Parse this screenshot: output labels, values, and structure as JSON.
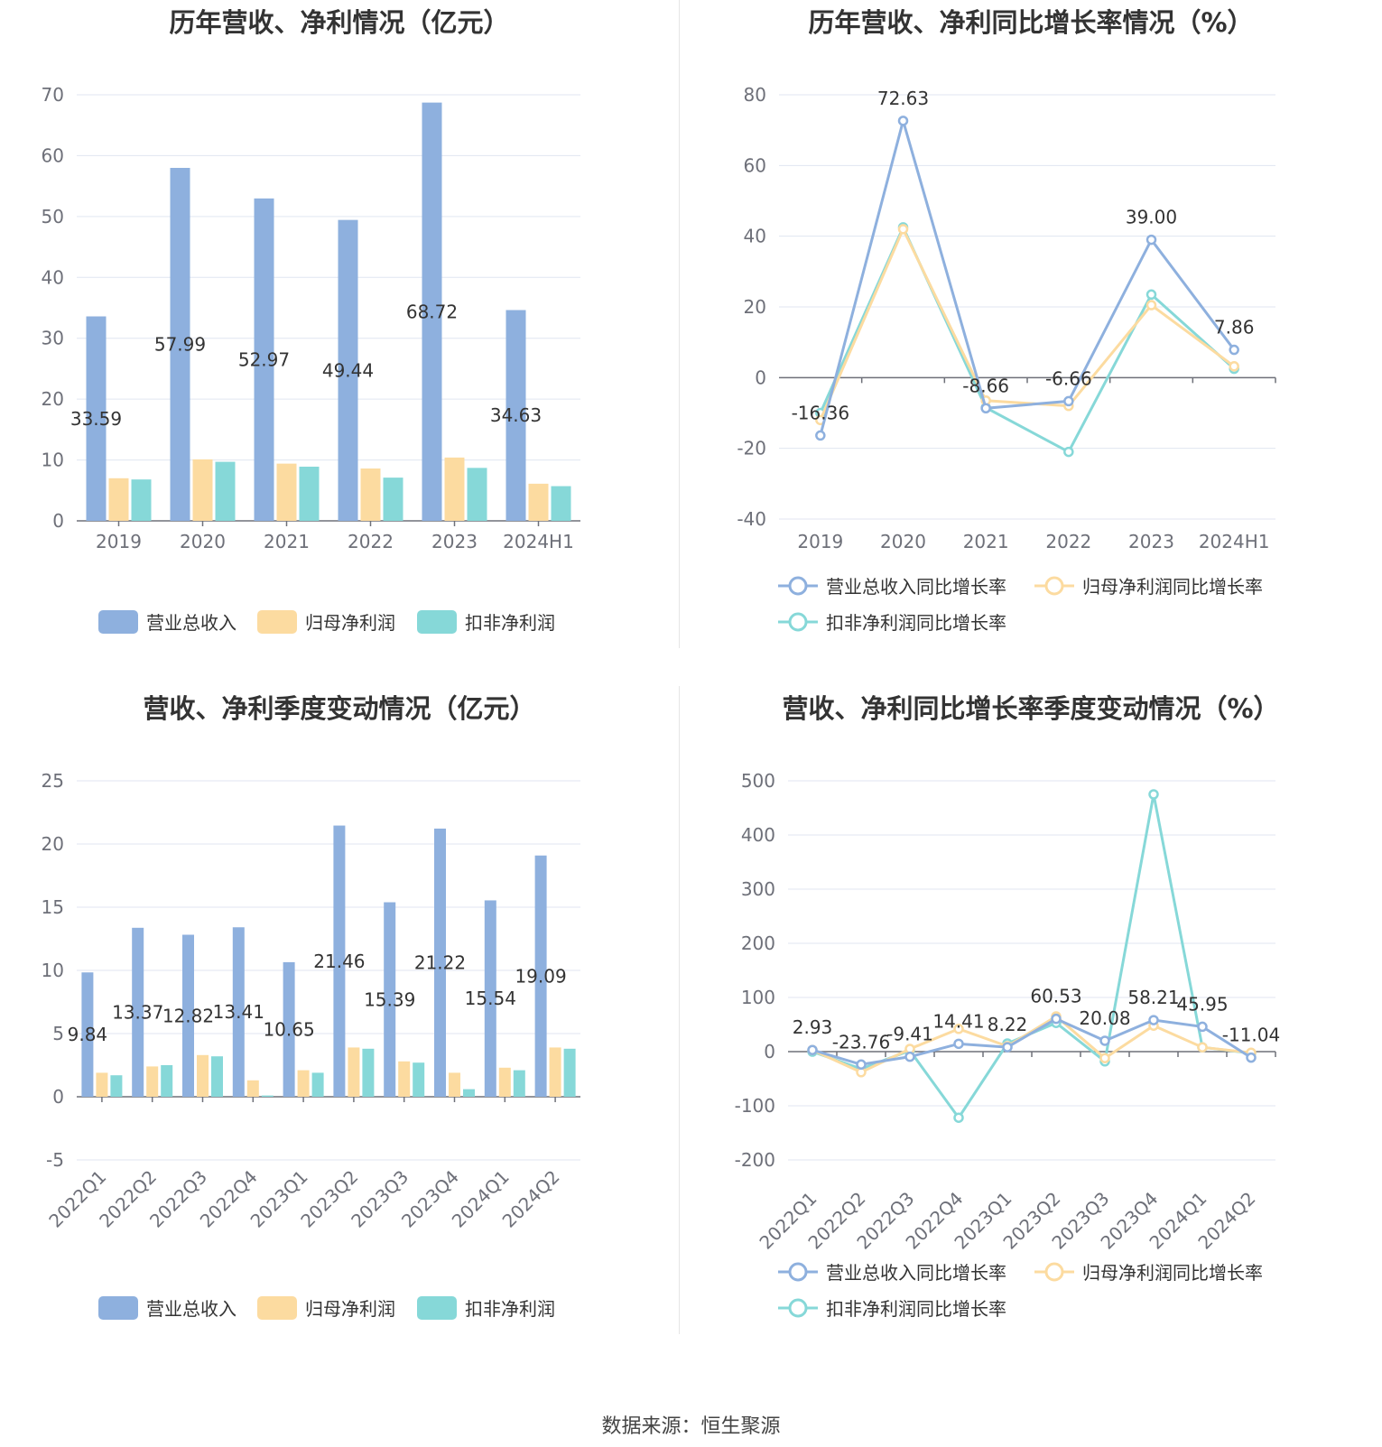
{
  "colors": {
    "revenue": "#8eb0de",
    "parent_profit": "#fcdba0",
    "nonrecurring_profit": "#86d8d8",
    "grid": "#e0e6f1",
    "axis": "#6e7079"
  },
  "source_label": "数据来源：",
  "source_name": "恒生聚源",
  "chart_data": [
    {
      "type": "bar",
      "title": "历年营收、净利情况（亿元）",
      "categories": [
        "2019",
        "2020",
        "2021",
        "2022",
        "2023",
        "2024H1"
      ],
      "ylim": [
        0,
        70
      ],
      "yticks": [
        0,
        10,
        20,
        30,
        40,
        50,
        60,
        70
      ],
      "series": [
        {
          "name": "营业总收入",
          "values": [
            33.59,
            57.99,
            52.97,
            49.44,
            68.72,
            34.63
          ],
          "labels": [
            "33.59",
            "57.99",
            "52.97",
            "49.44",
            "68.72",
            "34.63"
          ]
        },
        {
          "name": "归母净利润",
          "values": [
            7.0,
            10.1,
            9.4,
            8.6,
            10.4,
            6.1
          ]
        },
        {
          "name": "扣非净利润",
          "values": [
            6.8,
            9.7,
            8.9,
            7.1,
            8.7,
            5.7
          ]
        }
      ],
      "legend": "bottom",
      "grid": true
    },
    {
      "type": "line",
      "title": "历年营收、净利同比增长率情况（%）",
      "categories": [
        "2019",
        "2020",
        "2021",
        "2022",
        "2023",
        "2024H1"
      ],
      "ylim": [
        -40,
        80
      ],
      "yticks": [
        -40,
        -20,
        0,
        20,
        40,
        60,
        80
      ],
      "series": [
        {
          "name": "营业总收入同比增长率",
          "values": [
            -16.36,
            72.63,
            -8.66,
            -6.66,
            39.0,
            7.86
          ],
          "labels": [
            "-16.36",
            "72.63",
            "-8.66",
            "-6.66",
            "39.00",
            "7.86"
          ]
        },
        {
          "name": "归母净利润同比增长率",
          "values": [
            -12.0,
            42.0,
            -6.5,
            -8.0,
            20.5,
            3.2
          ]
        },
        {
          "name": "扣非净利润同比增长率",
          "values": [
            -10.0,
            42.5,
            -8.5,
            -21.0,
            23.5,
            2.5
          ]
        }
      ],
      "legend": "bottom",
      "grid": true
    },
    {
      "type": "bar",
      "title": "营收、净利季度变动情况（亿元）",
      "categories": [
        "2022Q1",
        "2022Q2",
        "2022Q3",
        "2022Q4",
        "2023Q1",
        "2023Q2",
        "2023Q3",
        "2023Q4",
        "2024Q1",
        "2024Q2"
      ],
      "ylim": [
        -5,
        25
      ],
      "yticks": [
        -5,
        0,
        5,
        10,
        15,
        20,
        25
      ],
      "series": [
        {
          "name": "营业总收入",
          "values": [
            9.84,
            13.37,
            12.82,
            13.41,
            10.65,
            21.46,
            15.39,
            21.22,
            15.54,
            19.09
          ],
          "labels": [
            "9.84",
            "13.37",
            "12.82",
            "13.41",
            "10.65",
            "21.46",
            "15.39",
            "21.22",
            "15.54",
            "19.09"
          ]
        },
        {
          "name": "归母净利润",
          "values": [
            1.9,
            2.4,
            3.3,
            1.3,
            2.1,
            3.9,
            2.8,
            1.9,
            2.3,
            3.9
          ]
        },
        {
          "name": "扣非净利润",
          "values": [
            1.7,
            2.5,
            3.2,
            0.1,
            1.9,
            3.8,
            2.7,
            0.6,
            2.1,
            3.8
          ]
        }
      ],
      "legend": "bottom",
      "grid": true
    },
    {
      "type": "line",
      "title": "营收、净利同比增长率季度变动情况（%）",
      "categories": [
        "2022Q1",
        "2022Q2",
        "2022Q3",
        "2022Q4",
        "2023Q1",
        "2023Q2",
        "2023Q3",
        "2023Q4",
        "2024Q1",
        "2024Q2"
      ],
      "ylim": [
        -200,
        500
      ],
      "yticks": [
        -200,
        -100,
        0,
        100,
        200,
        300,
        400,
        500
      ],
      "series": [
        {
          "name": "营业总收入同比增长率",
          "values": [
            2.93,
            -23.76,
            -9.41,
            14.41,
            8.22,
            60.53,
            20.08,
            58.21,
            45.95,
            -11.04
          ],
          "labels": [
            "2.93",
            "-23.76",
            "-9.41",
            "14.41",
            "8.22",
            "60.53",
            "20.08",
            "58.21",
            "45.95",
            "-11.04"
          ]
        },
        {
          "name": "归母净利润同比增长率",
          "values": [
            3,
            -38,
            5,
            42,
            10,
            65,
            -12,
            48,
            8,
            -2
          ]
        },
        {
          "name": "扣非净利润同比增长率",
          "values": [
            0,
            -32,
            2,
            -122,
            15,
            53,
            -18,
            475,
            8,
            -3
          ]
        }
      ],
      "legend": "bottom",
      "grid": true
    }
  ]
}
